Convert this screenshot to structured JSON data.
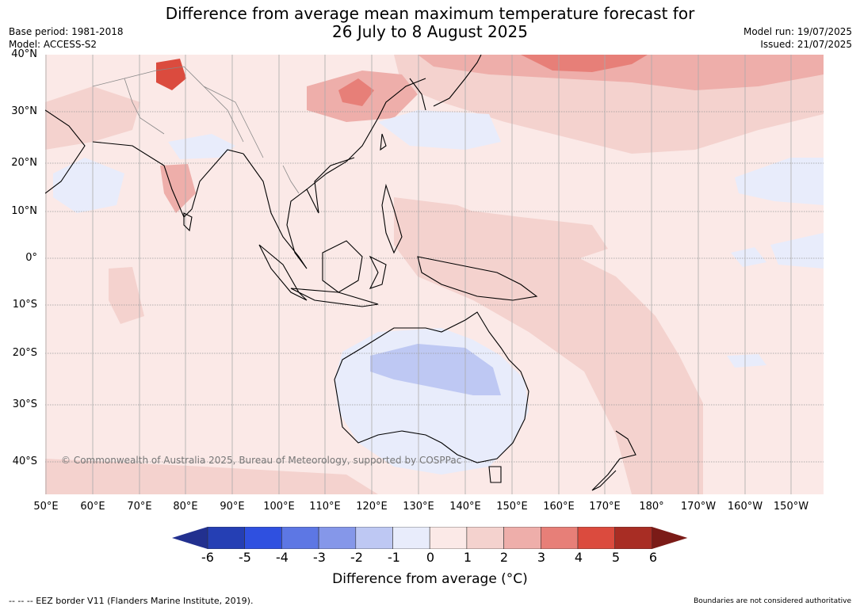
{
  "header": {
    "title_line1": "Difference from average mean maximum temperature forecast for",
    "title_line2": "26 July to 8 August 2025",
    "base_period": "Base period: 1981-2018",
    "model": "Model: ACCESS-S2",
    "model_run": "Model run: 19/07/2025",
    "issued": "Issued: 21/07/2025"
  },
  "map": {
    "lat_labels": [
      "40°N",
      "30°N",
      "20°N",
      "10°N",
      "0°",
      "10°S",
      "20°S",
      "30°S",
      "40°S"
    ],
    "lon_labels": [
      "50°E",
      "60°E",
      "70°E",
      "80°E",
      "90°E",
      "100°E",
      "110°E",
      "120°E",
      "130°E",
      "140°E",
      "150°E",
      "160°E",
      "170°E",
      "180°",
      "170°W",
      "160°W",
      "150°W"
    ],
    "copyright": "© Commonwealth of Australia 2025, Bureau of Meteorology, supported by COSPPac"
  },
  "legend": {
    "ticks": [
      "-6",
      "-5",
      "-4",
      "-3",
      "-2",
      "-1",
      "0",
      "1",
      "2",
      "3",
      "4",
      "5",
      "6"
    ],
    "colors": [
      "#22308f",
      "#253fb4",
      "#2f50e0",
      "#5d77e4",
      "#8597e9",
      "#bec8f3",
      "#e8ecfb",
      "#fbe9e7",
      "#f4d2ce",
      "#eeaeaa",
      "#e77f78",
      "#db4b3e",
      "#a82d24",
      "#7b1b17"
    ],
    "title": "Difference from average (°C)"
  },
  "footer": {
    "eez": "--  --  -- EEZ border V11 (Flanders Marine Institute, 2019).",
    "boundaries": "Boundaries are not considered authoritative"
  }
}
